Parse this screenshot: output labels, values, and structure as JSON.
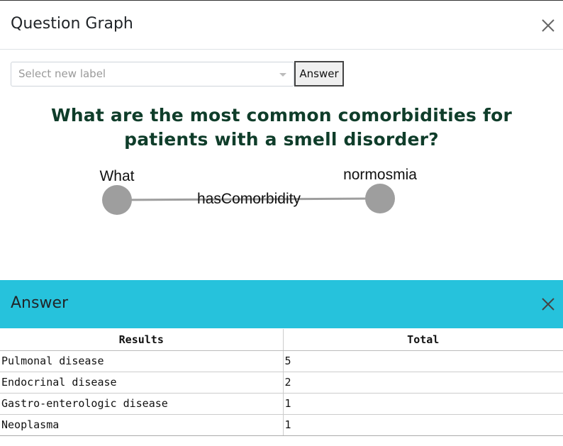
{
  "modal": {
    "title": "Question Graph",
    "close_icon": "close-icon"
  },
  "controls": {
    "select_placeholder": "Select new label",
    "answer_button": "Answer"
  },
  "question": "What are the most common comorbidities for patients with a smell disorder?",
  "graph": {
    "nodes": [
      {
        "label": "What"
      },
      {
        "label": "normosmia"
      }
    ],
    "edge_label": "hasComorbidity",
    "node_color": "#9e9e9e",
    "edge_color": "#9e9e9e"
  },
  "answer": {
    "title": "Answer",
    "header_color": "#26c2dc",
    "columns": [
      "Results",
      "Total"
    ],
    "rows": [
      [
        "Pulmonal disease",
        "5"
      ],
      [
        "Endocrinal disease",
        "2"
      ],
      [
        "Gastro-enterologic disease",
        "1"
      ],
      [
        "Neoplasma",
        "1"
      ]
    ]
  }
}
